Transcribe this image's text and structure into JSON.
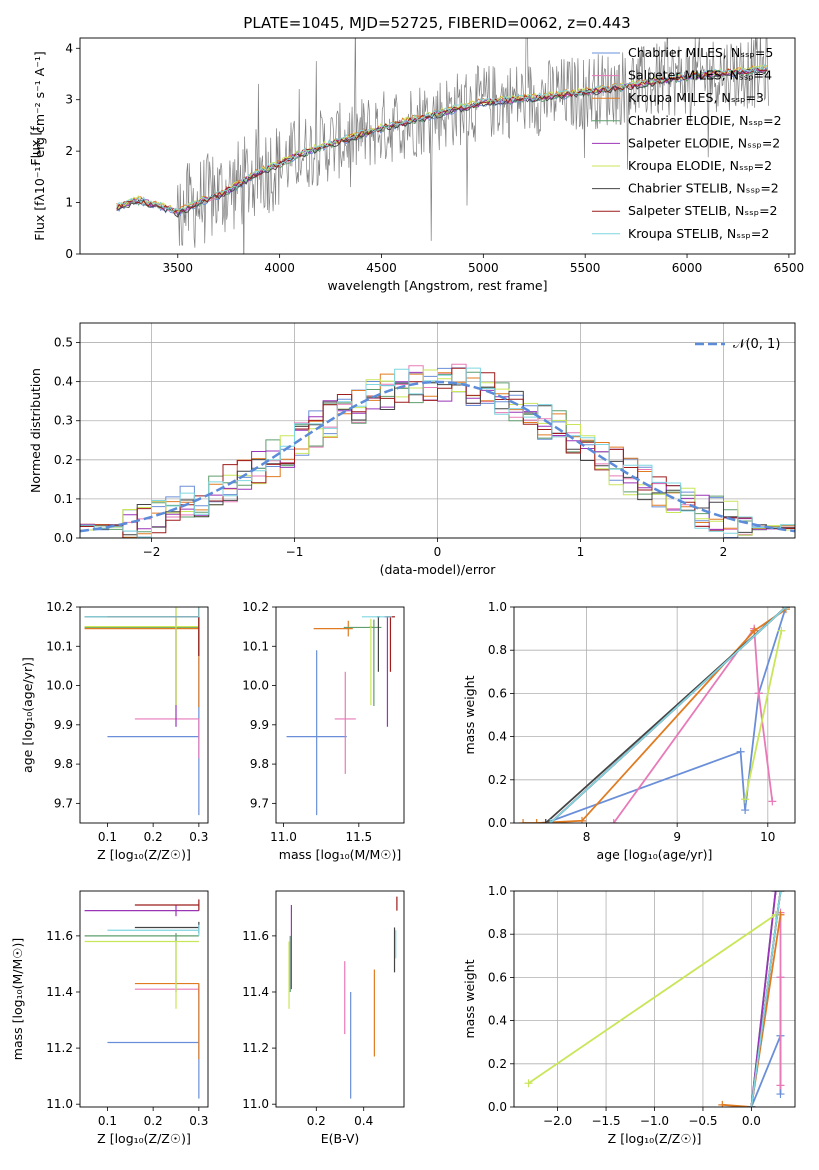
{
  "figure": {
    "title": "PLATE=1045, MJD=52725, FIBERID=0062, z=0.443"
  },
  "models": [
    {
      "name": "Chabrier MILES",
      "nssp": "5",
      "color": "#6a8fd8"
    },
    {
      "name": "Salpeter MILES",
      "nssp": "4",
      "color": "#e87ab8"
    },
    {
      "name": "Kroupa MILES",
      "nssp": "3",
      "color": "#e07b22"
    },
    {
      "name": "Chabrier ELODIE",
      "nssp": "2",
      "color": "#5f9e6e"
    },
    {
      "name": "Salpeter ELODIE",
      "nssp": "2",
      "color": "#9b35b8"
    },
    {
      "name": "Kroupa ELODIE",
      "nssp": "2",
      "color": "#c9e65a"
    },
    {
      "name": "Chabrier STELIB",
      "nssp": "2",
      "color": "#444444"
    },
    {
      "name": "Salpeter STELIB",
      "nssp": "2",
      "color": "#9e1c1c"
    },
    {
      "name": "Kroupa STELIB",
      "nssp": "2",
      "color": "#7fd6e0"
    }
  ],
  "chart_data": [
    {
      "id": "spectrum",
      "type": "line",
      "title": "PLATE=1045, MJD=52725, FIBERID=0062, z=0.443",
      "xlabel": "wavelength [Angstrom, rest frame]",
      "ylabel": "Flux [f",
      "xlim": [
        3020,
        6530
      ],
      "ylim": [
        0,
        4.2
      ],
      "xticks": [
        3500,
        4000,
        4500,
        5000,
        5500,
        6000,
        6500
      ],
      "yticks": [
        0,
        1,
        2,
        3,
        4
      ],
      "grid": false,
      "legend": "right",
      "data_color": "#808080",
      "data_x_range": [
        3200,
        6400
      ],
      "model_continuum": {
        "x": [
          3200,
          3300,
          3400,
          3500,
          3600,
          3700,
          3800,
          3900,
          4000,
          4100,
          4300,
          4500,
          4800,
          5000,
          5300,
          5600,
          6000,
          6400
        ],
        "y": [
          0.9,
          1.05,
          0.95,
          0.8,
          1.0,
          1.15,
          1.35,
          1.6,
          1.75,
          1.95,
          2.2,
          2.45,
          2.75,
          2.95,
          3.05,
          3.2,
          3.45,
          3.6
        ]
      }
    },
    {
      "id": "residuals",
      "type": "histogram",
      "xlabel": "(data-model)/error",
      "ylabel": "Normed distribution",
      "xlim": [
        -2.5,
        2.5
      ],
      "ylim": [
        0,
        0.55
      ],
      "xticks": [
        -2,
        -1,
        0,
        1,
        2
      ],
      "yticks": [
        0.0,
        0.1,
        0.2,
        0.3,
        0.4,
        0.5
      ],
      "grid": true,
      "legend": "top-right",
      "normal_label": "𝒩(0, 1)",
      "normal_color": "#5b8bd9",
      "bin_width": 0.1
    },
    {
      "id": "age_vs_Z",
      "type": "errorbar",
      "xlabel": "Z [log₁₀(Z/Z☉)]",
      "ylabel": "age  [log₁₀(age/yr)]",
      "xlim": [
        0.04,
        0.32
      ],
      "ylim": [
        9.65,
        10.2
      ],
      "xticks": [
        0.1,
        0.2,
        0.3
      ],
      "yticks": [
        9.7,
        9.8,
        9.9,
        10.0,
        10.1,
        10.2
      ],
      "points": [
        {
          "m": 0,
          "x": 0.3,
          "xerr": [
            0.2,
            0.0
          ],
          "y": 9.87,
          "yerr": [
            0.2,
            0.2
          ]
        },
        {
          "m": 1,
          "x": 0.3,
          "xerr": [
            0.14,
            0.0
          ],
          "y": 9.915,
          "yerr": [
            0.1,
            0.0
          ]
        },
        {
          "m": 2,
          "x": 0.3,
          "xerr": [
            0.25,
            0.0
          ],
          "y": 10.145,
          "yerr": [
            0.2,
            0.1
          ]
        },
        {
          "m": 3,
          "x": 0.25,
          "xerr": [
            0.2,
            0.05
          ],
          "y": 10.148,
          "yerr": [
            0.2,
            0.05
          ]
        },
        {
          "m": 4,
          "x": 0.25,
          "xerr": [
            0.0,
            0.05
          ],
          "y": 10.175,
          "yerr": [
            0.28,
            0.0
          ]
        },
        {
          "m": 5,
          "x": 0.25,
          "xerr": [
            0.2,
            0.05
          ],
          "y": 10.15,
          "yerr": [
            0.2,
            0.05
          ]
        },
        {
          "m": 6,
          "x": 0.3,
          "xerr": [
            0.25,
            0.0
          ],
          "y": 10.175,
          "yerr": [
            0.1,
            0.03
          ]
        },
        {
          "m": 7,
          "x": 0.3,
          "xerr": [
            0.2,
            0.0
          ],
          "y": 10.175,
          "yerr": [
            0.1,
            0.03
          ]
        },
        {
          "m": 8,
          "x": 0.3,
          "xerr": [
            0.25,
            0.0
          ],
          "y": 10.175,
          "yerr": [
            0.0,
            0.03
          ]
        }
      ]
    },
    {
      "id": "age_vs_mass",
      "type": "errorbar",
      "xlabel": "mass [log₁₀(M/M☉)]",
      "ylabel": "",
      "xlim": [
        10.95,
        11.8
      ],
      "ylim": [
        9.65,
        10.2
      ],
      "xticks": [
        11.0,
        11.5
      ],
      "yticks": [
        9.7,
        9.8,
        9.9,
        10.0,
        10.1,
        10.2
      ],
      "points": [
        {
          "m": 0,
          "x": 11.22,
          "xerr": [
            0.2,
            0.2
          ],
          "y": 9.87,
          "yerr": [
            0.2,
            0.22
          ]
        },
        {
          "m": 1,
          "x": 11.41,
          "xerr": [
            0.07,
            0.07
          ],
          "y": 9.915,
          "yerr": [
            0.14,
            0.12
          ]
        },
        {
          "m": 2,
          "x": 11.43,
          "xerr": [
            0.23,
            0.03
          ],
          "y": 10.145,
          "yerr": [
            0.02,
            0.02
          ]
        },
        {
          "m": 3,
          "x": 11.6,
          "xerr": [
            0.2,
            0.05
          ],
          "y": 10.148,
          "yerr": [
            0.2,
            0.02
          ]
        },
        {
          "m": 4,
          "x": 11.69,
          "xerr": [
            0.02,
            0.02
          ],
          "y": 10.175,
          "yerr": [
            0.28,
            0.0
          ]
        },
        {
          "m": 5,
          "x": 11.58,
          "xerr": [
            0.01,
            0.01
          ],
          "y": 10.15,
          "yerr": [
            0.2,
            0.02
          ]
        },
        {
          "m": 6,
          "x": 11.63,
          "xerr": [
            0.01,
            0.01
          ],
          "y": 10.175,
          "yerr": [
            0.14,
            0.0
          ]
        },
        {
          "m": 7,
          "x": 11.71,
          "xerr": [
            0.03,
            0.03
          ],
          "y": 10.175,
          "yerr": [
            0.14,
            0.0
          ]
        },
        {
          "m": 8,
          "x": 11.62,
          "xerr": [
            0.1,
            0.1
          ],
          "y": 10.175,
          "yerr": [
            0.0,
            0.0
          ]
        }
      ]
    },
    {
      "id": "massweight_vs_age",
      "type": "line",
      "xlabel": "age  [log₁₀(age/yr)]",
      "ylabel": "mass weight",
      "xlim": [
        7.2,
        10.3
      ],
      "ylim": [
        0,
        1
      ],
      "xticks": [
        8,
        9,
        10
      ],
      "yticks": [
        0.0,
        0.2,
        0.4,
        0.6,
        0.8,
        1.0
      ],
      "grid": true,
      "series": [
        {
          "m": 0,
          "x": [
            7.55,
            9.7,
            9.75,
            9.9,
            10.2
          ],
          "y": [
            0.0,
            0.33,
            0.06,
            0.6,
            1.0
          ]
        },
        {
          "m": 1,
          "x": [
            8.3,
            9.85,
            9.9,
            10.05
          ],
          "y": [
            0.0,
            0.9,
            0.6,
            0.1
          ]
        },
        {
          "m": 2,
          "x": [
            7.3,
            7.45,
            7.95,
            9.85,
            10.2
          ],
          "y": [
            0.0,
            0.0,
            0.01,
            0.89,
            0.99
          ]
        },
        {
          "m": 3,
          "x": [
            7.6,
            10.2
          ],
          "y": [
            0.0,
            1.0
          ]
        },
        {
          "m": 4,
          "x": [
            7.6,
            10.2
          ],
          "y": [
            0.0,
            1.0
          ]
        },
        {
          "m": 5,
          "x": [
            9.75,
            10.15
          ],
          "y": [
            0.11,
            0.89
          ]
        },
        {
          "m": 6,
          "x": [
            7.55,
            10.2
          ],
          "y": [
            0.0,
            1.0
          ]
        },
        {
          "m": 7,
          "x": [
            7.6,
            10.2
          ],
          "y": [
            0.0,
            1.0
          ]
        },
        {
          "m": 8,
          "x": [
            7.6,
            10.2
          ],
          "y": [
            0.0,
            1.0
          ]
        }
      ]
    },
    {
      "id": "mass_vs_Z",
      "type": "errorbar",
      "xlabel": "Z [log₁₀(Z/Z☉)]",
      "ylabel": "mass [log₁₀(M/M☉)]",
      "xlim": [
        0.04,
        0.32
      ],
      "ylim": [
        10.99,
        11.76
      ],
      "xticks": [
        0.1,
        0.2,
        0.3
      ],
      "yticks": [
        11.0,
        11.2,
        11.4,
        11.6
      ],
      "points": [
        {
          "m": 0,
          "x": 0.3,
          "xerr": [
            0.2,
            0.0
          ],
          "y": 11.22,
          "yerr": [
            0.2,
            0.2
          ]
        },
        {
          "m": 1,
          "x": 0.3,
          "xerr": [
            0.14,
            0.0
          ],
          "y": 11.41,
          "yerr": [
            0.02,
            0.02
          ]
        },
        {
          "m": 2,
          "x": 0.3,
          "xerr": [
            0.14,
            0.0
          ],
          "y": 11.43,
          "yerr": [
            0.27,
            0.0
          ]
        },
        {
          "m": 3,
          "x": 0.25,
          "xerr": [
            0.2,
            0.05
          ],
          "y": 11.6,
          "yerr": [
            0.2,
            0.01
          ]
        },
        {
          "m": 4,
          "x": 0.25,
          "xerr": [
            0.2,
            0.05
          ],
          "y": 11.69,
          "yerr": [
            0.02,
            0.02
          ]
        },
        {
          "m": 5,
          "x": 0.25,
          "xerr": [
            0.2,
            0.05
          ],
          "y": 11.58,
          "yerr": [
            0.24,
            0.0
          ]
        },
        {
          "m": 6,
          "x": 0.3,
          "xerr": [
            0.14,
            0.0
          ],
          "y": 11.63,
          "yerr": [
            0.02,
            0.02
          ]
        },
        {
          "m": 7,
          "x": 0.3,
          "xerr": [
            0.14,
            0.0
          ],
          "y": 11.71,
          "yerr": [
            0.02,
            0.02
          ]
        },
        {
          "m": 8,
          "x": 0.3,
          "xerr": [
            0.2,
            0.0
          ],
          "y": 11.62,
          "yerr": [
            0.02,
            0.02
          ]
        }
      ]
    },
    {
      "id": "mass_vs_EBV",
      "type": "errorbar",
      "xlabel": "E(B-V)",
      "ylabel": "",
      "xlim": [
        0.03,
        0.57
      ],
      "ylim": [
        10.99,
        11.76
      ],
      "xticks": [
        0.2,
        0.4
      ],
      "yticks": [
        11.0,
        11.2,
        11.4,
        11.6
      ],
      "points": [
        {
          "m": 0,
          "x": 0.345,
          "xerr": [
            0,
            0
          ],
          "y": 11.22,
          "yerr": [
            0.2,
            0.18
          ]
        },
        {
          "m": 1,
          "x": 0.32,
          "xerr": [
            0,
            0
          ],
          "y": 11.41,
          "yerr": [
            0.16,
            0.1
          ]
        },
        {
          "m": 2,
          "x": 0.445,
          "xerr": [
            0,
            0
          ],
          "y": 11.43,
          "yerr": [
            0.26,
            0.05
          ]
        },
        {
          "m": 3,
          "x": 0.09,
          "xerr": [
            0,
            0
          ],
          "y": 11.6,
          "yerr": [
            0.2,
            0.0
          ]
        },
        {
          "m": 4,
          "x": 0.095,
          "xerr": [
            0,
            0
          ],
          "y": 11.69,
          "yerr": [
            0.28,
            0.02
          ]
        },
        {
          "m": 5,
          "x": 0.085,
          "xerr": [
            0,
            0
          ],
          "y": 11.58,
          "yerr": [
            0.24,
            0.0
          ]
        },
        {
          "m": 6,
          "x": 0.53,
          "xerr": [
            0,
            0
          ],
          "y": 11.63,
          "yerr": [
            0.16,
            0.0
          ]
        },
        {
          "m": 7,
          "x": 0.54,
          "xerr": [
            0,
            0
          ],
          "y": 11.71,
          "yerr": [
            0.02,
            0.03
          ]
        },
        {
          "m": 8,
          "x": 0.535,
          "xerr": [
            0,
            0
          ],
          "y": 11.62,
          "yerr": [
            0.1,
            0.0
          ]
        }
      ]
    },
    {
      "id": "massweight_vs_Z",
      "type": "line",
      "xlabel": "Z [log₁₀(Z/Z☉)]",
      "ylabel": "mass weight",
      "xlim": [
        -2.45,
        0.45
      ],
      "ylim": [
        0,
        1
      ],
      "xticks": [
        -2.0,
        -1.5,
        -1.0,
        -0.5,
        0.0
      ],
      "yticks": [
        0.0,
        0.2,
        0.4,
        0.6,
        0.8,
        1.0
      ],
      "grid": true,
      "series": [
        {
          "m": 0,
          "x": [
            0.0,
            0.3,
            0.3,
            0.3
          ],
          "y": [
            0.0,
            0.33,
            0.06,
            0.6
          ]
        },
        {
          "m": 1,
          "x": [
            0.3,
            0.3,
            0.3
          ],
          "y": [
            0.1,
            0.6,
            0.9
          ]
        },
        {
          "m": 2,
          "x": [
            -0.3,
            0.0,
            0.3
          ],
          "y": [
            0.01,
            0.0,
            0.89
          ]
        },
        {
          "m": 3,
          "x": [
            0.0,
            0.25
          ],
          "y": [
            0.0,
            1.0
          ]
        },
        {
          "m": 4,
          "x": [
            0.0,
            0.25
          ],
          "y": [
            0.0,
            1.0
          ]
        },
        {
          "m": 5,
          "x": [
            -2.3,
            0.25
          ],
          "y": [
            0.11,
            0.89
          ]
        },
        {
          "m": 6,
          "x": [
            0.0,
            0.3
          ],
          "y": [
            0.0,
            1.0
          ]
        },
        {
          "m": 7,
          "x": [
            0.0,
            0.3
          ],
          "y": [
            0.0,
            1.0
          ]
        },
        {
          "m": 8,
          "x": [
            0.0,
            0.3
          ],
          "y": [
            0.0,
            1.0
          ]
        }
      ]
    }
  ]
}
